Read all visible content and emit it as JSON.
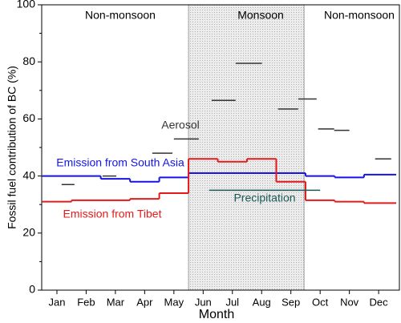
{
  "chart_data": {
    "type": "step",
    "xlabel": "Month",
    "ylabel": "Fossil fuel contribution of BC (%)",
    "xlim": [
      0.48,
      12.71
    ],
    "ylim": [
      0,
      100
    ],
    "xticks": [
      {
        "value": 1,
        "label": "Jan"
      },
      {
        "value": 2,
        "label": "Feb"
      },
      {
        "value": 3,
        "label": "Mar"
      },
      {
        "value": 4,
        "label": "Apr"
      },
      {
        "value": 5,
        "label": "May"
      },
      {
        "value": 6,
        "label": "Jun"
      },
      {
        "value": 7,
        "label": "Jul"
      },
      {
        "value": 8,
        "label": "Aug"
      },
      {
        "value": 9,
        "label": "Sep"
      },
      {
        "value": 10,
        "label": "Oct"
      },
      {
        "value": 11,
        "label": "Nov"
      },
      {
        "value": 12,
        "label": "Dec"
      }
    ],
    "yticks": [
      0,
      20,
      40,
      60,
      80,
      100
    ],
    "regions": [
      {
        "label": "Non-monsoon"
      },
      {
        "label": "Monsoon",
        "x": [
          5.5,
          9.45
        ],
        "color": "#e4e4e4"
      },
      {
        "label": "Non-monsoon"
      }
    ],
    "series": [
      {
        "name": "Aerosol",
        "color": "#333333",
        "steps": false,
        "x_start": [
          1.16,
          2.56,
          4.26,
          5.0,
          6.29,
          7.11,
          8.56,
          9.25,
          9.93,
          10.48,
          11.88
        ],
        "x_end": [
          1.6,
          3.03,
          4.95,
          5.85,
          7.11,
          8.01,
          9.25,
          9.88,
          10.48,
          11.0,
          12.43
        ],
        "values": [
          37,
          40,
          48,
          53,
          66.5,
          79.5,
          63.5,
          67,
          56.5,
          56,
          46
        ]
      },
      {
        "name": "Emission from South Asia",
        "color": "#1414e6",
        "steps": true,
        "x_start": [
          0.5,
          2.5,
          3.5,
          4.5,
          5.5,
          9.5,
          10.5,
          11.5
        ],
        "x_end": [
          2.5,
          3.5,
          4.5,
          5.5,
          9.5,
          10.5,
          11.5,
          12.6
        ],
        "values": [
          40,
          39,
          38,
          39.5,
          41,
          40,
          39.5,
          40.5
        ]
      },
      {
        "name": "Emission from Tibet",
        "color": "#e41a1a",
        "steps": true,
        "x_start": [
          0.5,
          1.5,
          3.5,
          4.5,
          5.5,
          6.5,
          7.5,
          8.5,
          9.5,
          10.5,
          11.5
        ],
        "x_end": [
          1.5,
          3.5,
          4.5,
          5.5,
          6.5,
          7.5,
          8.5,
          9.5,
          10.5,
          11.5,
          12.6
        ],
        "values": [
          31,
          31.5,
          32,
          34,
          46,
          45,
          46,
          38,
          31.5,
          31,
          30.5
        ]
      },
      {
        "name": "Precipitation",
        "color": "#1a5a5a",
        "steps": false,
        "x_start": [
          6.2
        ],
        "x_end": [
          10.0
        ],
        "values": [
          35
        ]
      }
    ]
  }
}
